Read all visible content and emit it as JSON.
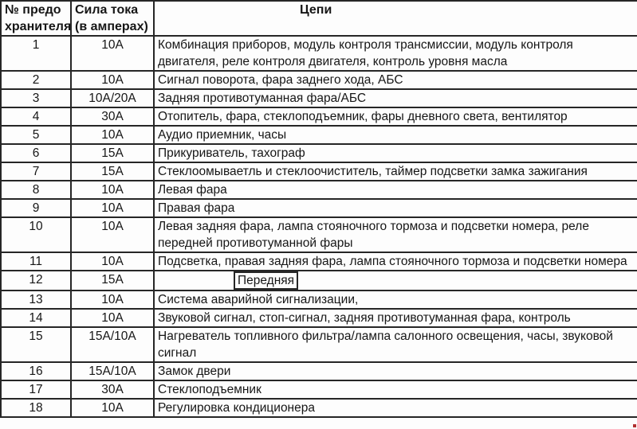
{
  "table": {
    "headers": {
      "fuse_number": "№ предо\nхранителя",
      "amperage": "Сила тока\n(в амперах)",
      "circuits": "Цепи"
    },
    "rows": [
      {
        "num": "1",
        "amp": "10A",
        "circuit": "Комбинация приборов, модуль контроля трансмиссии, модуль контроля двигателя, реле контроля двигателя, контроль уровня масла"
      },
      {
        "num": "2",
        "amp": "10A",
        "circuit": "Сигнал поворота, фара заднего хода, АБС"
      },
      {
        "num": "3",
        "amp": "10A/20A",
        "circuit": "Задняя противотуманная фара/АБС"
      },
      {
        "num": "4",
        "amp": "30A",
        "circuit": "Отопитель, фара, стеклоподъемник, фары дневного света, вентилятор"
      },
      {
        "num": "5",
        "amp": "10A",
        "circuit": "Аудио приемник, часы"
      },
      {
        "num": "6",
        "amp": "15A",
        "circuit": "Прикуриватель, тахограф"
      },
      {
        "num": "7",
        "amp": "15A",
        "circuit": "Стеклоомываетль и стеклоочиститель, таймер подсветки замка зажигания"
      },
      {
        "num": "8",
        "amp": "10A",
        "circuit": "Левая фара"
      },
      {
        "num": "9",
        "amp": "10A",
        "circuit": "Правая фара"
      },
      {
        "num": "10",
        "amp": "10A",
        "circuit": "Левая задняя фара, лампа стояночного тормоза и подсветки номера, реле передней противотуманной фары"
      },
      {
        "num": "11",
        "amp": "10A",
        "circuit": "Подсветка, правая задняя фара, лампа стояночного тормоза и подсветки номера"
      },
      {
        "num": "12",
        "amp": "15A",
        "circuit": "Передняя"
      },
      {
        "num": "13",
        "amp": "10A",
        "circuit": "Система аварийной сигнализации,"
      },
      {
        "num": "14",
        "amp": "10A",
        "circuit": "Звуковой сигнал, стоп-сигнал, задняя противотуманная фара, контроль"
      },
      {
        "num": "15",
        "amp": "15A/10A",
        "circuit": "Нагреватель топливного фильтра/лампа салонного освещения, часы, звуковой сигнал"
      },
      {
        "num": "16",
        "amp": "15A/10A",
        "circuit": "Замок двери"
      },
      {
        "num": "17",
        "amp": "30A",
        "circuit": "Стеклоподъемник"
      },
      {
        "num": "18",
        "amp": "10A",
        "circuit": "Регулировка кондиционера"
      }
    ]
  },
  "colors": {
    "border": "#262626",
    "text": "#161616",
    "background": "#fdfdfd",
    "marker": "#b03030"
  }
}
